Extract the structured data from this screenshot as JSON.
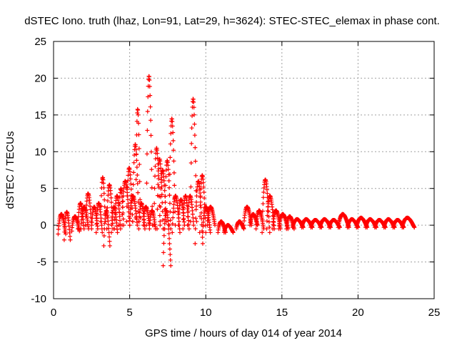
{
  "chart_data": {
    "type": "scatter",
    "title": "dSTEC Iono. truth (lhaz, Lon=91, Lat=29, h=3624): STEC-STEC_elemax in phase cont.",
    "xlabel": "GPS time / hours of day 014 of year 2014",
    "ylabel": "dSTEC  / TECUs",
    "xlim": [
      0,
      25
    ],
    "ylim": [
      -10,
      25
    ],
    "xticks": [
      0,
      5,
      10,
      15,
      20,
      25
    ],
    "yticks": [
      -10,
      -5,
      0,
      5,
      10,
      15,
      20,
      25
    ],
    "grid": true,
    "marker": "plus",
    "colors": {
      "series": "#ff0000",
      "grid": "#a0a0a0",
      "axis": "#000000"
    },
    "series": [
      {
        "name": "STEC-STEC_elemax",
        "arcs": [
          {
            "t0": 0.3,
            "t1": 0.8,
            "y0": -1.2,
            "y1": 1.5
          },
          {
            "t0": 0.7,
            "t1": 1.1,
            "y0": -2.0,
            "y1": 1.8
          },
          {
            "t0": 1.2,
            "t1": 1.7,
            "y0": -0.8,
            "y1": 1.2
          },
          {
            "t0": 1.6,
            "t1": 2.0,
            "y0": -0.5,
            "y1": 3.0
          },
          {
            "t0": 1.8,
            "t1": 2.3,
            "y0": -0.5,
            "y1": 2.5
          },
          {
            "t0": 2.1,
            "t1": 2.5,
            "y0": 0.0,
            "y1": 4.3
          },
          {
            "t0": 2.5,
            "t1": 2.9,
            "y0": -0.5,
            "y1": 2.5
          },
          {
            "t0": 2.8,
            "t1": 3.2,
            "y0": -1.0,
            "y1": 3.0
          },
          {
            "t0": 3.1,
            "t1": 3.4,
            "y0": 0.5,
            "y1": 6.5
          },
          {
            "t0": 3.3,
            "t1": 3.7,
            "y0": -2.8,
            "y1": 2.0
          },
          {
            "t0": 3.5,
            "t1": 3.9,
            "y0": -0.5,
            "y1": 5.5
          },
          {
            "t0": 3.8,
            "t1": 4.2,
            "y0": -1.0,
            "y1": 2.5
          },
          {
            "t0": 4.0,
            "t1": 4.4,
            "y0": -0.5,
            "y1": 4.0
          },
          {
            "t0": 4.3,
            "t1": 4.6,
            "y0": 0.0,
            "y1": 5.0
          },
          {
            "t0": 4.5,
            "t1": 5.0,
            "y0": 0.0,
            "y1": 6.0
          },
          {
            "t0": 4.8,
            "t1": 5.2,
            "y0": 0.5,
            "y1": 7.8
          },
          {
            "t0": 5.0,
            "t1": 5.5,
            "y0": 0.0,
            "y1": 4.0
          },
          {
            "t0": 5.2,
            "t1": 5.6,
            "y0": 0.5,
            "y1": 11.0
          },
          {
            "t0": 5.4,
            "t1": 5.7,
            "y0": 1.0,
            "y1": 15.8
          },
          {
            "t0": 5.6,
            "t1": 6.0,
            "y0": -0.5,
            "y1": 3.0
          },
          {
            "t0": 5.9,
            "t1": 6.3,
            "y0": 0.0,
            "y1": 2.5
          },
          {
            "t0": 6.1,
            "t1": 6.5,
            "y0": 0.0,
            "y1": 20.3
          },
          {
            "t0": 6.3,
            "t1": 6.7,
            "y0": -0.5,
            "y1": 2.0
          },
          {
            "t0": 6.6,
            "t1": 7.0,
            "y0": 0.0,
            "y1": 10.5
          },
          {
            "t0": 6.8,
            "t1": 7.2,
            "y0": -0.5,
            "y1": 9.0
          },
          {
            "t0": 7.0,
            "t1": 7.4,
            "y0": 0.5,
            "y1": 7.5
          },
          {
            "t0": 7.2,
            "t1": 7.7,
            "y0": -5.5,
            "y1": 2.0
          },
          {
            "t0": 7.3,
            "t1": 7.7,
            "y0": -0.5,
            "y1": 8.8
          },
          {
            "t0": 7.6,
            "t1": 8.0,
            "y0": 0.0,
            "y1": 14.5
          },
          {
            "t0": 7.8,
            "t1": 8.3,
            "y0": -1.0,
            "y1": 4.0
          },
          {
            "t0": 8.2,
            "t1": 8.6,
            "y0": 0.0,
            "y1": 3.5
          },
          {
            "t0": 8.5,
            "t1": 8.9,
            "y0": -0.5,
            "y1": 4.0
          },
          {
            "t0": 8.8,
            "t1": 9.2,
            "y0": 0.0,
            "y1": 4.0
          },
          {
            "t0": 9.0,
            "t1": 9.4,
            "y0": 0.5,
            "y1": 17.2
          },
          {
            "t0": 9.3,
            "t1": 9.8,
            "y0": -2.5,
            "y1": 6.0
          },
          {
            "t0": 9.6,
            "t1": 10.0,
            "y0": -1.0,
            "y1": 6.8
          },
          {
            "t0": 9.8,
            "t1": 10.3,
            "y0": -1.0,
            "y1": 2.5
          },
          {
            "t0": 10.1,
            "t1": 10.6,
            "y0": 0.0,
            "y1": 2.5
          },
          {
            "t0": 10.8,
            "t1": 11.3,
            "y0": -1.0,
            "y1": 0.5
          },
          {
            "t0": 11.2,
            "t1": 11.8,
            "y0": -1.0,
            "y1": 0.0
          },
          {
            "t0": 12.0,
            "t1": 12.5,
            "y0": -0.5,
            "y1": 0.5
          },
          {
            "t0": 12.5,
            "t1": 13.0,
            "y0": 0.0,
            "y1": 2.5
          },
          {
            "t0": 12.9,
            "t1": 13.4,
            "y0": 0.0,
            "y1": 1.5
          },
          {
            "t0": 13.3,
            "t1": 13.8,
            "y0": -0.5,
            "y1": 2.0
          },
          {
            "t0": 13.7,
            "t1": 14.2,
            "y0": -1.0,
            "y1": 6.2
          },
          {
            "t0": 14.0,
            "t1": 14.5,
            "y0": -0.5,
            "y1": 4.0
          },
          {
            "t0": 14.4,
            "t1": 14.9,
            "y0": -0.5,
            "y1": 2.0
          },
          {
            "t0": 14.8,
            "t1": 15.4,
            "y0": -0.5,
            "y1": 1.5
          },
          {
            "t0": 15.3,
            "t1": 15.8,
            "y0": -0.5,
            "y1": 1.2
          },
          {
            "t0": 15.7,
            "t1": 16.4,
            "y0": -0.3,
            "y1": 0.8
          },
          {
            "t0": 16.3,
            "t1": 17.0,
            "y0": -0.3,
            "y1": 0.8
          },
          {
            "t0": 16.9,
            "t1": 17.6,
            "y0": -0.3,
            "y1": 0.7
          },
          {
            "t0": 17.5,
            "t1": 18.2,
            "y0": -0.3,
            "y1": 0.8
          },
          {
            "t0": 18.1,
            "t1": 18.8,
            "y0": -0.3,
            "y1": 0.7
          },
          {
            "t0": 18.7,
            "t1": 19.4,
            "y0": -0.3,
            "y1": 1.5
          },
          {
            "t0": 19.3,
            "t1": 20.0,
            "y0": -0.3,
            "y1": 0.8
          },
          {
            "t0": 19.9,
            "t1": 20.6,
            "y0": -0.3,
            "y1": 1.0
          },
          {
            "t0": 20.5,
            "t1": 21.2,
            "y0": -0.3,
            "y1": 0.8
          },
          {
            "t0": 21.1,
            "t1": 21.8,
            "y0": -0.3,
            "y1": 0.7
          },
          {
            "t0": 21.7,
            "t1": 22.4,
            "y0": -0.3,
            "y1": 0.8
          },
          {
            "t0": 22.3,
            "t1": 23.0,
            "y0": -0.3,
            "y1": 0.7
          },
          {
            "t0": 22.9,
            "t1": 23.7,
            "y0": -0.3,
            "y1": 1.0
          }
        ]
      }
    ]
  }
}
